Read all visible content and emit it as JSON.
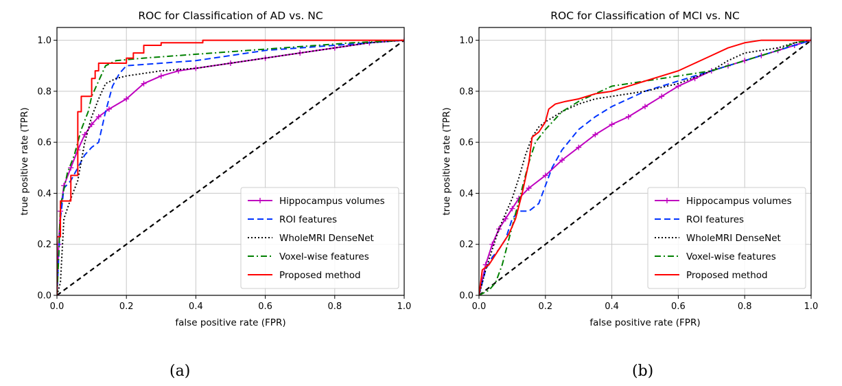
{
  "figure": {
    "caption_a": "(a)",
    "caption_b": "(b)"
  },
  "chart_data": [
    {
      "type": "line",
      "title": "ROC for Classification of AD vs. NC",
      "xlabel": "false positive rate (FPR)",
      "ylabel": "true positive rate (TPR)",
      "xlim": [
        0,
        1
      ],
      "ylim": [
        0,
        1.05
      ],
      "xticks": [
        "0.0",
        "0.2",
        "0.4",
        "0.6",
        "0.8",
        "1.0"
      ],
      "yticks": [
        "0.0",
        "0.2",
        "0.4",
        "0.6",
        "0.8",
        "1.0"
      ],
      "grid": true,
      "legend_position": "lower-right",
      "series": [
        {
          "name": "Hippocampus volumes",
          "color": "#bf00bf",
          "style": "solid-plus",
          "points": [
            [
              0,
              0
            ],
            [
              0.005,
              0.2
            ],
            [
              0.01,
              0.33
            ],
            [
              0.02,
              0.43
            ],
            [
              0.04,
              0.5
            ],
            [
              0.06,
              0.57
            ],
            [
              0.08,
              0.63
            ],
            [
              0.1,
              0.67
            ],
            [
              0.12,
              0.7
            ],
            [
              0.15,
              0.73
            ],
            [
              0.2,
              0.77
            ],
            [
              0.25,
              0.83
            ],
            [
              0.3,
              0.86
            ],
            [
              0.35,
              0.88
            ],
            [
              0.4,
              0.89
            ],
            [
              0.5,
              0.91
            ],
            [
              0.6,
              0.93
            ],
            [
              0.7,
              0.95
            ],
            [
              0.8,
              0.97
            ],
            [
              0.9,
              0.99
            ],
            [
              1,
              1
            ]
          ]
        },
        {
          "name": "ROI features",
          "color": "#0033ff",
          "style": "dashed",
          "points": [
            [
              0,
              0
            ],
            [
              0.01,
              0.3
            ],
            [
              0.02,
              0.42
            ],
            [
              0.04,
              0.45
            ],
            [
              0.06,
              0.5
            ],
            [
              0.08,
              0.55
            ],
            [
              0.1,
              0.58
            ],
            [
              0.12,
              0.6
            ],
            [
              0.14,
              0.72
            ],
            [
              0.16,
              0.82
            ],
            [
              0.18,
              0.87
            ],
            [
              0.2,
              0.9
            ],
            [
              0.3,
              0.91
            ],
            [
              0.4,
              0.92
            ],
            [
              0.5,
              0.94
            ],
            [
              0.6,
              0.96
            ],
            [
              0.7,
              0.97
            ],
            [
              0.8,
              0.98
            ],
            [
              0.9,
              0.99
            ],
            [
              1,
              1
            ]
          ]
        },
        {
          "name": "WholeMRI DenseNet",
          "color": "#000000",
          "style": "dotted",
          "points": [
            [
              0,
              0
            ],
            [
              0.01,
              0.05
            ],
            [
              0.02,
              0.3
            ],
            [
              0.04,
              0.38
            ],
            [
              0.06,
              0.45
            ],
            [
              0.08,
              0.6
            ],
            [
              0.1,
              0.7
            ],
            [
              0.12,
              0.77
            ],
            [
              0.14,
              0.83
            ],
            [
              0.17,
              0.85
            ],
            [
              0.2,
              0.86
            ],
            [
              0.3,
              0.88
            ],
            [
              0.4,
              0.89
            ],
            [
              0.5,
              0.91
            ],
            [
              0.6,
              0.93
            ],
            [
              0.7,
              0.95
            ],
            [
              0.8,
              0.97
            ],
            [
              0.9,
              0.99
            ],
            [
              1,
              1
            ]
          ]
        },
        {
          "name": "Voxel-wise features",
          "color": "#008000",
          "style": "dashdot",
          "points": [
            [
              0,
              0
            ],
            [
              0.005,
              0.15
            ],
            [
              0.01,
              0.35
            ],
            [
              0.03,
              0.48
            ],
            [
              0.05,
              0.55
            ],
            [
              0.07,
              0.65
            ],
            [
              0.09,
              0.72
            ],
            [
              0.1,
              0.78
            ],
            [
              0.12,
              0.84
            ],
            [
              0.14,
              0.9
            ],
            [
              0.17,
              0.92
            ],
            [
              0.25,
              0.93
            ],
            [
              0.35,
              0.94
            ],
            [
              0.45,
              0.95
            ],
            [
              0.55,
              0.96
            ],
            [
              0.65,
              0.97
            ],
            [
              0.75,
              0.98
            ],
            [
              0.85,
              0.99
            ],
            [
              1,
              1
            ]
          ]
        },
        {
          "name": "Proposed method",
          "color": "#ff0000",
          "style": "solid",
          "points": [
            [
              0,
              0
            ],
            [
              0,
              0.23
            ],
            [
              0.01,
              0.23
            ],
            [
              0.01,
              0.37
            ],
            [
              0.04,
              0.37
            ],
            [
              0.04,
              0.47
            ],
            [
              0.06,
              0.47
            ],
            [
              0.06,
              0.72
            ],
            [
              0.07,
              0.72
            ],
            [
              0.07,
              0.78
            ],
            [
              0.1,
              0.78
            ],
            [
              0.1,
              0.85
            ],
            [
              0.11,
              0.85
            ],
            [
              0.11,
              0.88
            ],
            [
              0.12,
              0.88
            ],
            [
              0.12,
              0.91
            ],
            [
              0.2,
              0.91
            ],
            [
              0.2,
              0.93
            ],
            [
              0.22,
              0.93
            ],
            [
              0.22,
              0.95
            ],
            [
              0.25,
              0.95
            ],
            [
              0.25,
              0.98
            ],
            [
              0.3,
              0.98
            ],
            [
              0.3,
              0.99
            ],
            [
              0.42,
              0.99
            ],
            [
              0.42,
              1
            ],
            [
              1,
              1
            ]
          ]
        },
        {
          "name": "",
          "color": "#000000",
          "style": "chance",
          "points": [
            [
              0,
              0
            ],
            [
              1,
              1
            ]
          ]
        }
      ]
    },
    {
      "type": "line",
      "title": "ROC for Classification of MCI vs. NC",
      "xlabel": "false positive rate (FPR)",
      "ylabel": "true positive rate (TPR)",
      "xlim": [
        0,
        1
      ],
      "ylim": [
        0,
        1.05
      ],
      "xticks": [
        "0.0",
        "0.2",
        "0.4",
        "0.6",
        "0.8",
        "1.0"
      ],
      "yticks": [
        "0.0",
        "0.2",
        "0.4",
        "0.6",
        "0.8",
        "1.0"
      ],
      "grid": true,
      "legend_position": "lower-right",
      "series": [
        {
          "name": "Hippocampus volumes",
          "color": "#bf00bf",
          "style": "solid-plus",
          "points": [
            [
              0,
              0
            ],
            [
              0.02,
              0.12
            ],
            [
              0.04,
              0.2
            ],
            [
              0.06,
              0.26
            ],
            [
              0.08,
              0.3
            ],
            [
              0.1,
              0.34
            ],
            [
              0.12,
              0.38
            ],
            [
              0.15,
              0.42
            ],
            [
              0.2,
              0.47
            ],
            [
              0.25,
              0.53
            ],
            [
              0.3,
              0.58
            ],
            [
              0.35,
              0.63
            ],
            [
              0.4,
              0.67
            ],
            [
              0.45,
              0.7
            ],
            [
              0.5,
              0.74
            ],
            [
              0.55,
              0.78
            ],
            [
              0.6,
              0.82
            ],
            [
              0.65,
              0.85
            ],
            [
              0.7,
              0.88
            ],
            [
              0.75,
              0.9
            ],
            [
              0.8,
              0.92
            ],
            [
              0.85,
              0.94
            ],
            [
              0.9,
              0.96
            ],
            [
              0.95,
              0.98
            ],
            [
              1,
              1
            ]
          ]
        },
        {
          "name": "ROI features",
          "color": "#0033ff",
          "style": "dashed",
          "points": [
            [
              0,
              0
            ],
            [
              0.02,
              0.1
            ],
            [
              0.04,
              0.15
            ],
            [
              0.06,
              0.18
            ],
            [
              0.08,
              0.22
            ],
            [
              0.1,
              0.3
            ],
            [
              0.12,
              0.33
            ],
            [
              0.15,
              0.33
            ],
            [
              0.18,
              0.36
            ],
            [
              0.2,
              0.43
            ],
            [
              0.22,
              0.5
            ],
            [
              0.25,
              0.57
            ],
            [
              0.3,
              0.65
            ],
            [
              0.35,
              0.7
            ],
            [
              0.4,
              0.74
            ],
            [
              0.45,
              0.77
            ],
            [
              0.5,
              0.8
            ],
            [
              0.55,
              0.82
            ],
            [
              0.6,
              0.84
            ],
            [
              0.65,
              0.86
            ],
            [
              0.7,
              0.88
            ],
            [
              0.75,
              0.9
            ],
            [
              0.8,
              0.92
            ],
            [
              0.85,
              0.94
            ],
            [
              0.9,
              0.96
            ],
            [
              0.95,
              0.98
            ],
            [
              1,
              1
            ]
          ]
        },
        {
          "name": "WholeMRI DenseNet",
          "color": "#000000",
          "style": "dotted",
          "points": [
            [
              0,
              0
            ],
            [
              0.02,
              0.1
            ],
            [
              0.04,
              0.18
            ],
            [
              0.06,
              0.26
            ],
            [
              0.08,
              0.32
            ],
            [
              0.1,
              0.38
            ],
            [
              0.12,
              0.46
            ],
            [
              0.14,
              0.55
            ],
            [
              0.16,
              0.62
            ],
            [
              0.18,
              0.66
            ],
            [
              0.2,
              0.68
            ],
            [
              0.25,
              0.72
            ],
            [
              0.3,
              0.75
            ],
            [
              0.35,
              0.77
            ],
            [
              0.4,
              0.78
            ],
            [
              0.5,
              0.8
            ],
            [
              0.6,
              0.83
            ],
            [
              0.7,
              0.88
            ],
            [
              0.75,
              0.92
            ],
            [
              0.8,
              0.95
            ],
            [
              0.85,
              0.96
            ],
            [
              0.9,
              0.97
            ],
            [
              0.95,
              0.99
            ],
            [
              1,
              1
            ]
          ]
        },
        {
          "name": "Voxel-wise features",
          "color": "#008000",
          "style": "dashdot",
          "points": [
            [
              0,
              0
            ],
            [
              0.03,
              0.02
            ],
            [
              0.05,
              0.05
            ],
            [
              0.07,
              0.12
            ],
            [
              0.09,
              0.22
            ],
            [
              0.11,
              0.32
            ],
            [
              0.13,
              0.42
            ],
            [
              0.15,
              0.52
            ],
            [
              0.17,
              0.6
            ],
            [
              0.2,
              0.65
            ],
            [
              0.25,
              0.72
            ],
            [
              0.3,
              0.76
            ],
            [
              0.35,
              0.79
            ],
            [
              0.4,
              0.82
            ],
            [
              0.45,
              0.83
            ],
            [
              0.5,
              0.84
            ],
            [
              0.55,
              0.85
            ],
            [
              0.6,
              0.86
            ],
            [
              0.65,
              0.87
            ],
            [
              0.7,
              0.88
            ],
            [
              0.75,
              0.9
            ],
            [
              0.8,
              0.92
            ],
            [
              0.85,
              0.94
            ],
            [
              0.9,
              0.96
            ],
            [
              0.95,
              0.99
            ],
            [
              1,
              1
            ]
          ]
        },
        {
          "name": "Proposed method",
          "color": "#ff0000",
          "style": "solid",
          "points": [
            [
              0,
              0
            ],
            [
              0.01,
              0.1
            ],
            [
              0.03,
              0.12
            ],
            [
              0.05,
              0.16
            ],
            [
              0.07,
              0.2
            ],
            [
              0.09,
              0.24
            ],
            [
              0.11,
              0.3
            ],
            [
              0.13,
              0.4
            ],
            [
              0.15,
              0.52
            ],
            [
              0.16,
              0.62
            ],
            [
              0.18,
              0.64
            ],
            [
              0.2,
              0.68
            ],
            [
              0.21,
              0.73
            ],
            [
              0.23,
              0.75
            ],
            [
              0.26,
              0.76
            ],
            [
              0.3,
              0.77
            ],
            [
              0.35,
              0.79
            ],
            [
              0.4,
              0.8
            ],
            [
              0.45,
              0.82
            ],
            [
              0.5,
              0.84
            ],
            [
              0.55,
              0.86
            ],
            [
              0.6,
              0.88
            ],
            [
              0.65,
              0.91
            ],
            [
              0.7,
              0.94
            ],
            [
              0.75,
              0.97
            ],
            [
              0.8,
              0.99
            ],
            [
              0.85,
              1
            ],
            [
              1,
              1
            ]
          ]
        },
        {
          "name": "",
          "color": "#000000",
          "style": "chance",
          "points": [
            [
              0,
              0
            ],
            [
              1,
              1
            ]
          ]
        }
      ]
    }
  ]
}
